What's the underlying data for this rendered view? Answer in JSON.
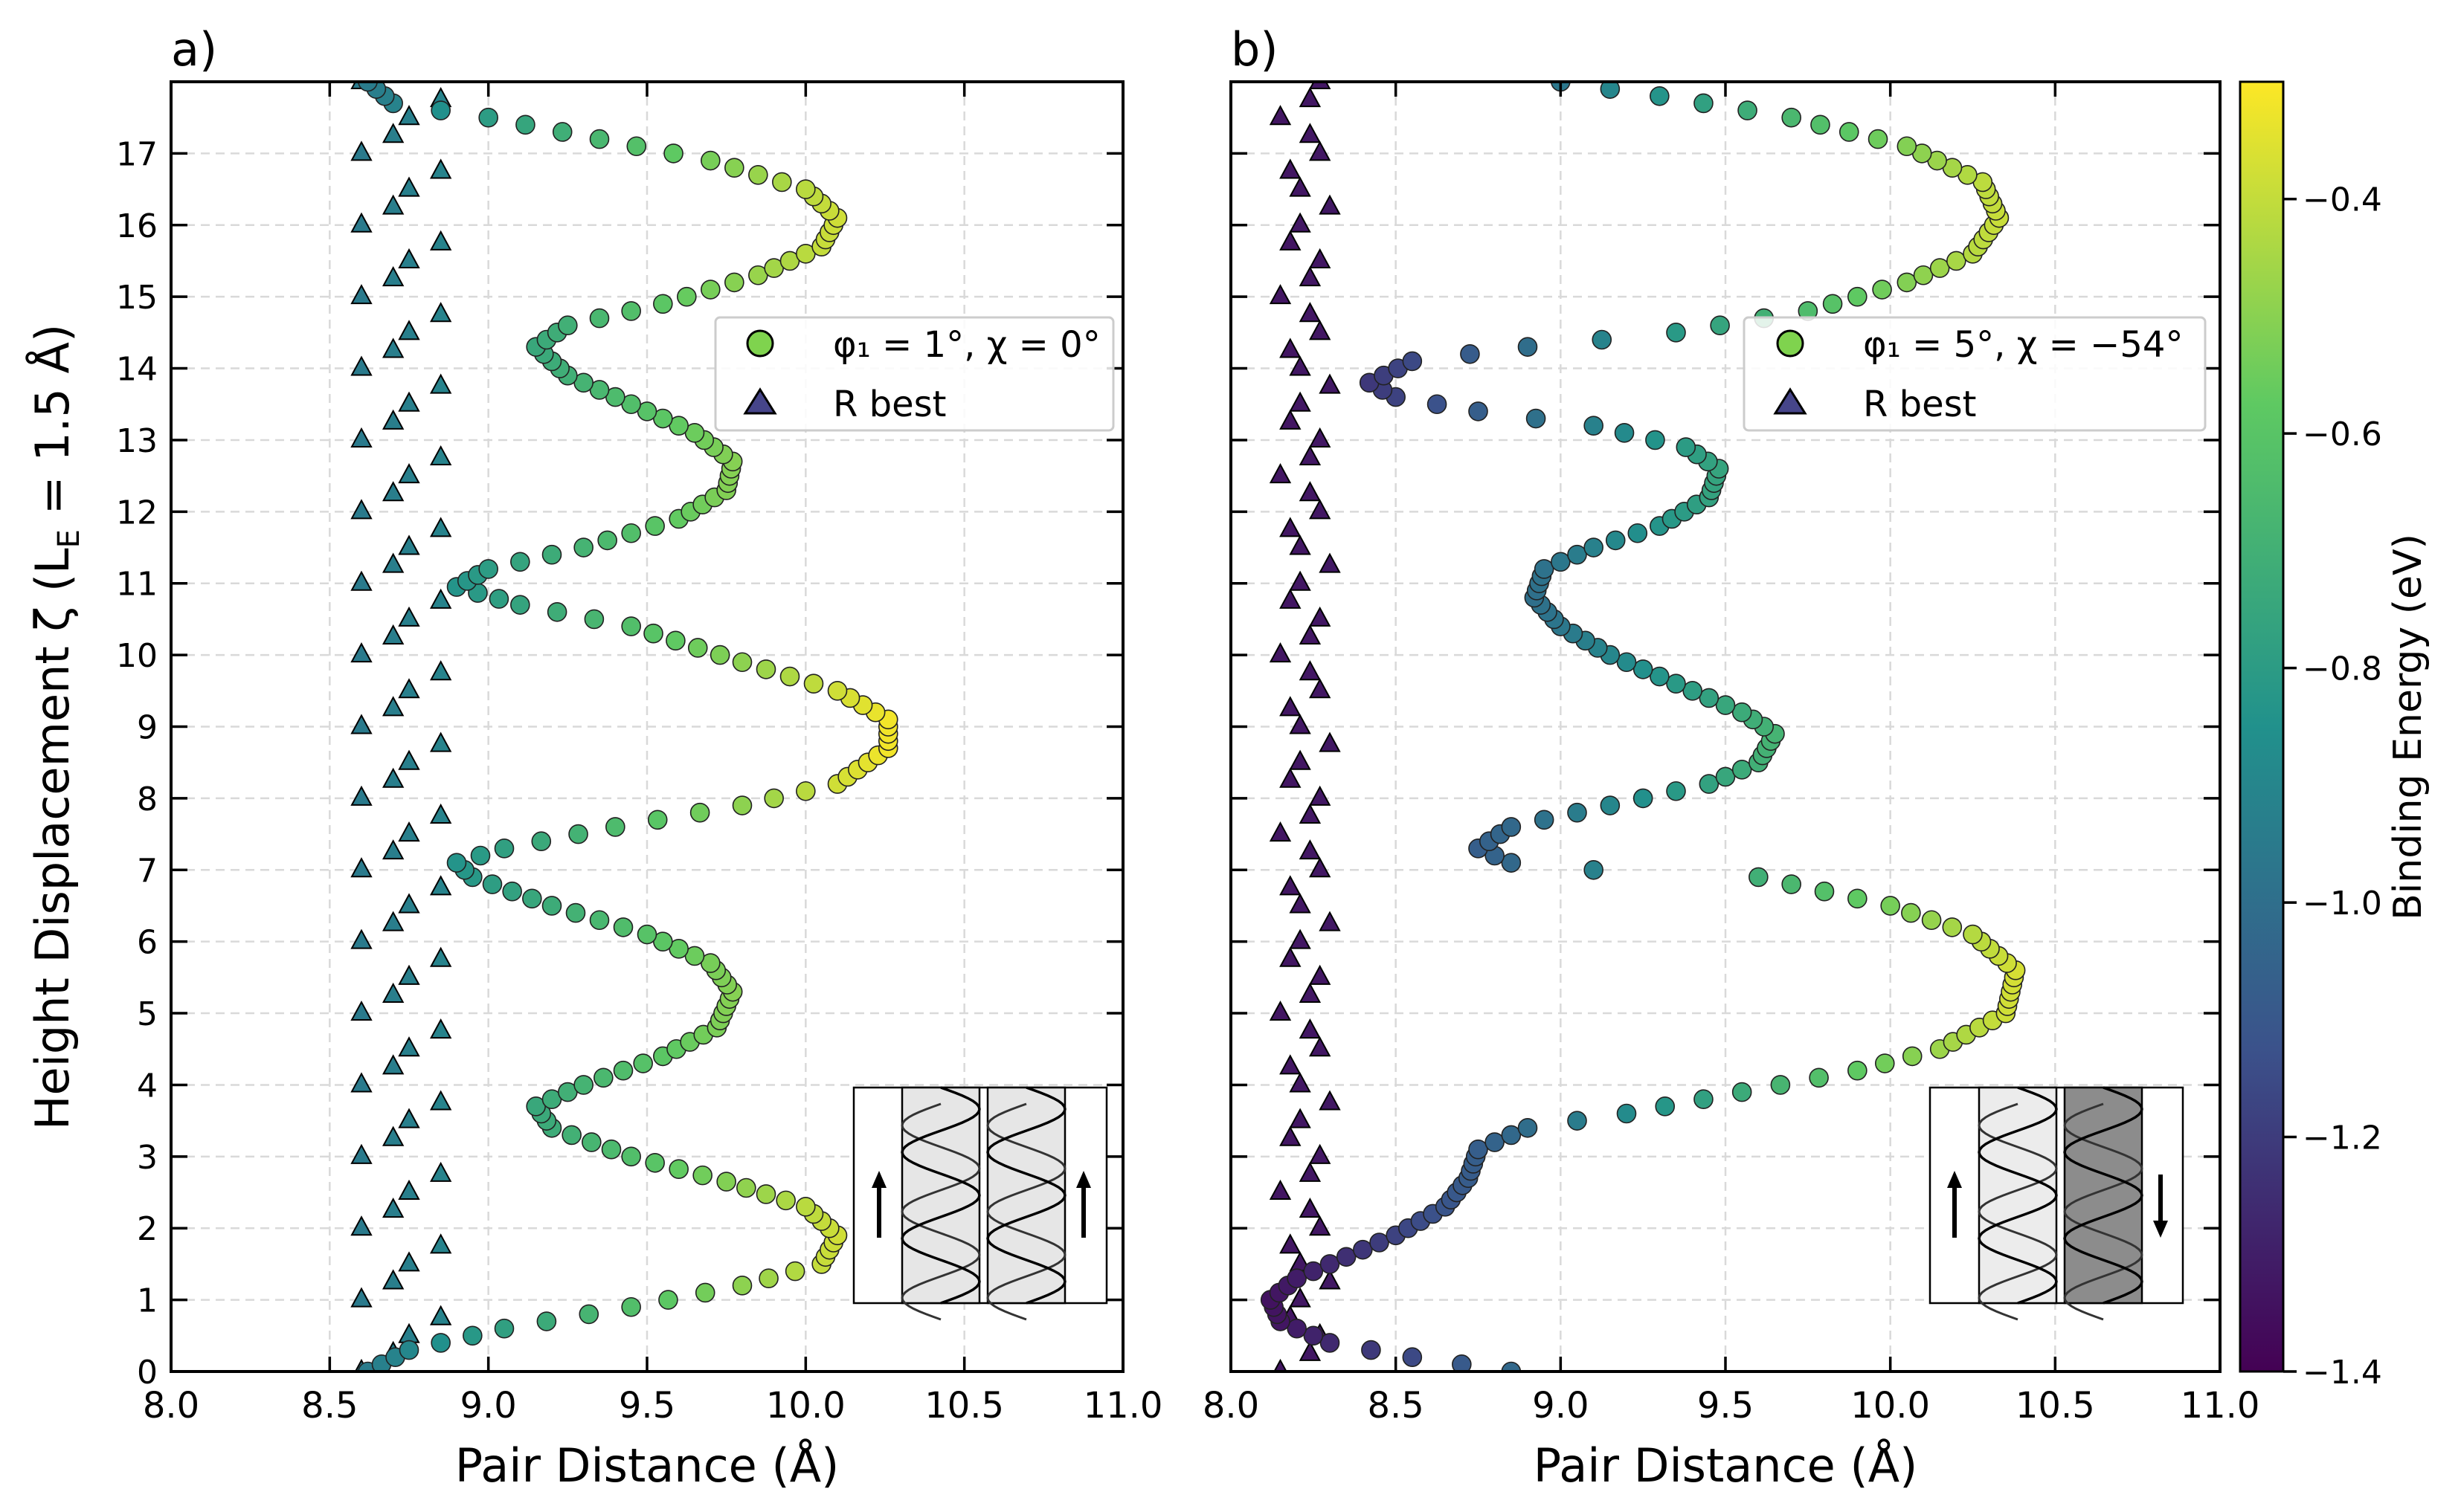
{
  "chart_data": [
    {
      "type": "scatter",
      "panel_label": "a)",
      "xlabel": "Pair Distance (Å)",
      "ylabel": "Height Displacement ζ (L",
      "ylabel_sub": "E",
      "ylabel_tail": " = 1.5 Å)",
      "xlim": [
        8.0,
        11.0
      ],
      "ylim": [
        0,
        18
      ],
      "xticks": [
        "8.0",
        "8.5",
        "9.0",
        "9.5",
        "10.0",
        "10.5",
        "11.0"
      ],
      "yticks": [
        "0",
        "1",
        "2",
        "3",
        "4",
        "5",
        "6",
        "7",
        "8",
        "9",
        "10",
        "11",
        "12",
        "13",
        "14",
        "15",
        "16",
        "17"
      ],
      "grid": true,
      "legend_position": "upper-right",
      "series": [
        {
          "name": "φ₁ = 1°, χ = 0°",
          "marker": "circle",
          "curve": {
            "x_min": 8.6,
            "x_max_odd": 9.77,
            "x_max_even": 10.1,
            "x_max_even2": 10.26,
            "period": 7.3
          },
          "points": [
            [
              8.62,
              0.0
            ],
            [
              8.75,
              0.3
            ],
            [
              9.05,
              0.6
            ],
            [
              9.45,
              0.9
            ],
            [
              9.8,
              1.2
            ],
            [
              10.05,
              1.5
            ],
            [
              10.1,
              1.9
            ],
            [
              10.0,
              2.3
            ],
            [
              9.75,
              2.65
            ],
            [
              9.45,
              3.0
            ],
            [
              9.2,
              3.4
            ],
            [
              9.15,
              3.7
            ],
            [
              9.3,
              4.0
            ],
            [
              9.55,
              4.4
            ],
            [
              9.72,
              4.8
            ],
            [
              9.77,
              5.3
            ],
            [
              9.7,
              5.7
            ],
            [
              9.5,
              6.1
            ],
            [
              9.2,
              6.5
            ],
            [
              8.95,
              6.9
            ],
            [
              8.9,
              7.1
            ],
            [
              9.05,
              7.3
            ],
            [
              9.4,
              7.6
            ],
            [
              9.8,
              7.9
            ],
            [
              10.1,
              8.2
            ],
            [
              10.26,
              8.7
            ],
            [
              10.26,
              9.1
            ],
            [
              10.1,
              9.5
            ],
            [
              9.8,
              9.9
            ],
            [
              9.45,
              10.4
            ],
            [
              9.1,
              10.7
            ],
            [
              8.9,
              10.95
            ],
            [
              9.0,
              11.2
            ],
            [
              9.3,
              11.5
            ],
            [
              9.6,
              11.9
            ],
            [
              9.75,
              12.3
            ],
            [
              9.77,
              12.7
            ],
            [
              9.65,
              13.1
            ],
            [
              9.45,
              13.5
            ],
            [
              9.25,
              13.9
            ],
            [
              9.15,
              14.3
            ],
            [
              9.25,
              14.6
            ],
            [
              9.55,
              14.9
            ],
            [
              9.85,
              15.3
            ],
            [
              10.05,
              15.7
            ],
            [
              10.1,
              16.1
            ],
            [
              10.0,
              16.5
            ],
            [
              9.7,
              16.9
            ],
            [
              9.35,
              17.2
            ],
            [
              9.0,
              17.5
            ],
            [
              8.7,
              17.7
            ],
            [
              8.62,
              18.0
            ]
          ]
        },
        {
          "name": "R best",
          "marker": "triangle",
          "x_values": [
            8.6,
            8.7,
            8.75,
            8.85,
            8.95
          ]
        }
      ],
      "inset": {
        "description": "parallel helices",
        "arrows": [
          "up",
          "up"
        ]
      }
    },
    {
      "type": "scatter",
      "panel_label": "b)",
      "xlabel": "Pair Distance (Å)",
      "xlim": [
        8.0,
        11.0
      ],
      "ylim": [
        0,
        18
      ],
      "xticks": [
        "8.0",
        "8.5",
        "9.0",
        "9.5",
        "10.0",
        "10.5",
        "11.0"
      ],
      "grid": true,
      "legend_position": "upper-right",
      "series": [
        {
          "name": "φ₁ = 5°, χ = −54°",
          "marker": "circle",
          "points": [
            [
              8.85,
              0.0
            ],
            [
              8.55,
              0.2
            ],
            [
              8.3,
              0.4
            ],
            [
              8.15,
              0.7
            ],
            [
              8.12,
              1.0
            ],
            [
              8.2,
              1.3
            ],
            [
              8.35,
              1.6
            ],
            [
              8.5,
              1.9
            ],
            [
              8.65,
              2.3
            ],
            [
              8.72,
              2.7
            ],
            [
              8.75,
              3.1
            ],
            [
              8.9,
              3.4
            ],
            [
              9.2,
              3.6
            ],
            [
              9.55,
              3.9
            ],
            [
              9.9,
              4.2
            ],
            [
              10.15,
              4.5
            ],
            [
              10.35,
              5.0
            ],
            [
              10.38,
              5.6
            ],
            [
              10.25,
              6.1
            ],
            [
              10.0,
              6.5
            ],
            [
              9.6,
              6.9
            ],
            [
              9.1,
              7.0
            ],
            [
              8.85,
              7.1
            ],
            [
              8.75,
              7.3
            ],
            [
              8.85,
              7.6
            ],
            [
              9.15,
              7.9
            ],
            [
              9.45,
              8.2
            ],
            [
              9.6,
              8.5
            ],
            [
              9.65,
              8.9
            ],
            [
              9.55,
              9.2
            ],
            [
              9.35,
              9.6
            ],
            [
              9.15,
              10.0
            ],
            [
              9.0,
              10.4
            ],
            [
              8.92,
              10.8
            ],
            [
              8.95,
              11.2
            ],
            [
              9.1,
              11.5
            ],
            [
              9.3,
              11.8
            ],
            [
              9.45,
              12.2
            ],
            [
              9.48,
              12.6
            ],
            [
              9.38,
              12.9
            ],
            [
              9.1,
              13.2
            ],
            [
              8.75,
              13.4
            ],
            [
              8.5,
              13.6
            ],
            [
              8.42,
              13.8
            ],
            [
              8.55,
              14.1
            ],
            [
              8.9,
              14.3
            ],
            [
              9.35,
              14.5
            ],
            [
              9.75,
              14.8
            ],
            [
              10.05,
              15.2
            ],
            [
              10.25,
              15.6
            ],
            [
              10.33,
              16.1
            ],
            [
              10.28,
              16.6
            ],
            [
              10.05,
              17.1
            ],
            [
              9.7,
              17.5
            ],
            [
              9.3,
              17.8
            ],
            [
              9.0,
              18.0
            ]
          ]
        },
        {
          "name": "R best",
          "marker": "triangle",
          "x_values": [
            8.15,
            8.2,
            8.25,
            8.3
          ]
        }
      ],
      "inset": {
        "description": "antiparallel helices",
        "arrows": [
          "up",
          "down"
        ]
      }
    }
  ],
  "colorbar": {
    "label": "Binding Energy (eV)",
    "range": [
      -1.4,
      -0.3
    ],
    "ticks": [
      "−0.4",
      "−0.6",
      "−0.8",
      "−1.0",
      "−1.2",
      "−1.4"
    ],
    "tick_values": [
      -0.4,
      -0.6,
      -0.8,
      -1.0,
      -1.2,
      -1.4
    ],
    "colormap": "viridis",
    "colors": [
      "#440154",
      "#3b528b",
      "#21918c",
      "#5ec962",
      "#fde725"
    ]
  }
}
